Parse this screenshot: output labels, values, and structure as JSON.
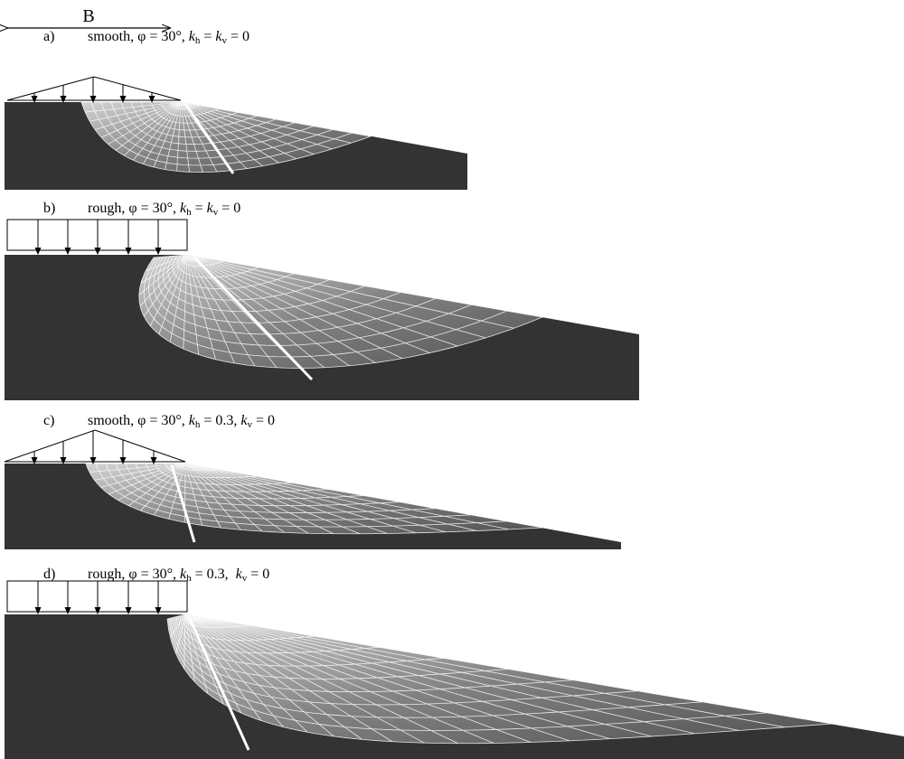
{
  "dimension_label": "B",
  "panels": [
    {
      "label": "a)",
      "caption": [
        "smooth, φ = 30°, ",
        "k",
        "h",
        " = ",
        "k",
        "v",
        " = 0"
      ]
    },
    {
      "label": "b)",
      "caption": [
        "rough, φ = 30°, ",
        "k",
        "h",
        " = ",
        "k",
        "v",
        " = 0"
      ]
    },
    {
      "label": "c)",
      "caption": [
        "smooth, φ = 30°, ",
        "k",
        "h",
        " = 0.3, ",
        "k",
        "v",
        " = 0"
      ]
    },
    {
      "label": "d)",
      "caption": [
        "rough, φ = 30°, ",
        "k",
        "h",
        " = 0.3,  ",
        "k",
        "v",
        " = 0"
      ]
    }
  ]
}
